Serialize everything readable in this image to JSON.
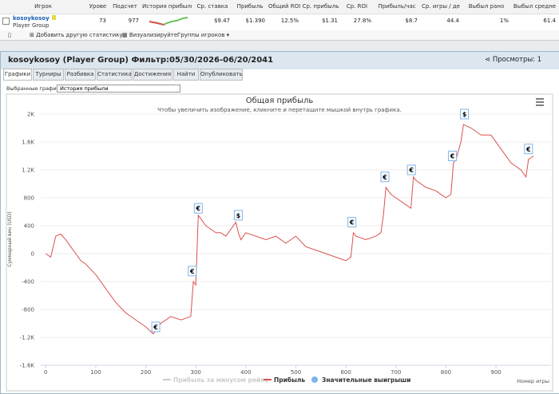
{
  "table": {
    "headers": [
      "Игрок",
      "Урове",
      "Подсчет",
      "История прибыли",
      "Ср. ставка",
      "Прибыль",
      "Общий ROI",
      "Ср. прибыль",
      "Ср. ROI",
      "Прибыль/час",
      "Ср. игры / де",
      "Выбыл рано",
      "Выбыл средне"
    ],
    "player": "kosoykosoy",
    "group": "Player Group",
    "cells": [
      "73",
      "977",
      "$9.47",
      "$1.390",
      "12.5%",
      "$1.31",
      "27.8%",
      "$8.7",
      "44.4",
      "1%",
      "61.4"
    ]
  },
  "toolbar": {
    "buttons": [
      "Добавить другую статистику",
      "Визуализируйте",
      "Группы игроков"
    ]
  },
  "panel": {
    "title": "kosoykosoy (Player Group) Фильтр:05/30/2026-06/20/2041",
    "views": "Просмотры: 1",
    "tabs": [
      "Графики",
      "Турниры",
      "Разбивка",
      "Статистика",
      "Достижения",
      "Найти",
      "Опубликовать"
    ],
    "selector_label": "Выбранные графики:",
    "selector_value": "История прибыли"
  },
  "chart_data": {
    "type": "line",
    "title": "Общая прибыль",
    "subtitle": "Чтобы увеличить изображение, кликните и перетащите мышкой внутрь графика.",
    "y_label": "Суммарный вин (USD)",
    "x_label": "Номер игры",
    "xlim": [
      -10,
      1010
    ],
    "ylim": [
      -1600,
      2000
    ],
    "xticks": [
      0,
      100,
      200,
      300,
      400,
      500,
      600,
      700,
      800,
      900
    ],
    "yticks": [
      {
        "value": 2000,
        "label": "2K"
      },
      {
        "value": 1600,
        "label": "1.6K"
      },
      {
        "value": 1200,
        "label": "1.2K"
      },
      800,
      400,
      0,
      -400,
      -800,
      {
        "value": -1200,
        "label": "-1.2K"
      },
      {
        "value": -1600,
        "label": "-1.6K"
      }
    ],
    "grid": true,
    "x": [
      0,
      10,
      20,
      30,
      40,
      50,
      60,
      70,
      80,
      100,
      120,
      140,
      160,
      180,
      200,
      215,
      220,
      230,
      250,
      270,
      290,
      295,
      300,
      305,
      310,
      320,
      330,
      340,
      350,
      360,
      370,
      380,
      385,
      390,
      400,
      420,
      440,
      460,
      480,
      500,
      520,
      540,
      560,
      580,
      600,
      610,
      615,
      620,
      640,
      660,
      670,
      675,
      680,
      690,
      700,
      720,
      730,
      735,
      740,
      760,
      780,
      800,
      810,
      815,
      820,
      830,
      835,
      850,
      870,
      890,
      910,
      930,
      950,
      960,
      965,
      975
    ],
    "series": [
      {
        "name": "Прибыль за минусом рейка",
        "color": "#cccccc",
        "visible": false
      },
      {
        "name": "Прибыль",
        "color": "#d9534f",
        "values": [
          0,
          -50,
          250,
          280,
          200,
          100,
          0,
          -100,
          -150,
          -300,
          -500,
          -700,
          -850,
          -950,
          -1050,
          -1150,
          -1100,
          -1000,
          -900,
          -950,
          -900,
          -400,
          -450,
          550,
          500,
          400,
          350,
          300,
          300,
          250,
          350,
          450,
          300,
          200,
          300,
          250,
          200,
          250,
          150,
          250,
          100,
          50,
          0,
          -50,
          -100,
          -50,
          300,
          250,
          200,
          250,
          300,
          550,
          950,
          850,
          800,
          700,
          650,
          1100,
          1050,
          950,
          900,
          800,
          850,
          1300,
          1350,
          1600,
          1850,
          1800,
          1700,
          1700,
          1500,
          1300,
          1200,
          1100,
          1350,
          1400
        ]
      },
      {
        "name": "Значительные выигрыши",
        "color": "#7cb5ec",
        "x": [
          220,
          293,
          305,
          385,
          612,
          678,
          731,
          813,
          837,
          965
        ],
        "values": [
          -1050,
          -250,
          650,
          550,
          450,
          1100,
          1200,
          1400,
          2000,
          1500
        ],
        "labels": [
          "€",
          "€",
          "€",
          "$",
          "€",
          "€",
          "€",
          "€",
          "$",
          "€"
        ]
      }
    ]
  }
}
